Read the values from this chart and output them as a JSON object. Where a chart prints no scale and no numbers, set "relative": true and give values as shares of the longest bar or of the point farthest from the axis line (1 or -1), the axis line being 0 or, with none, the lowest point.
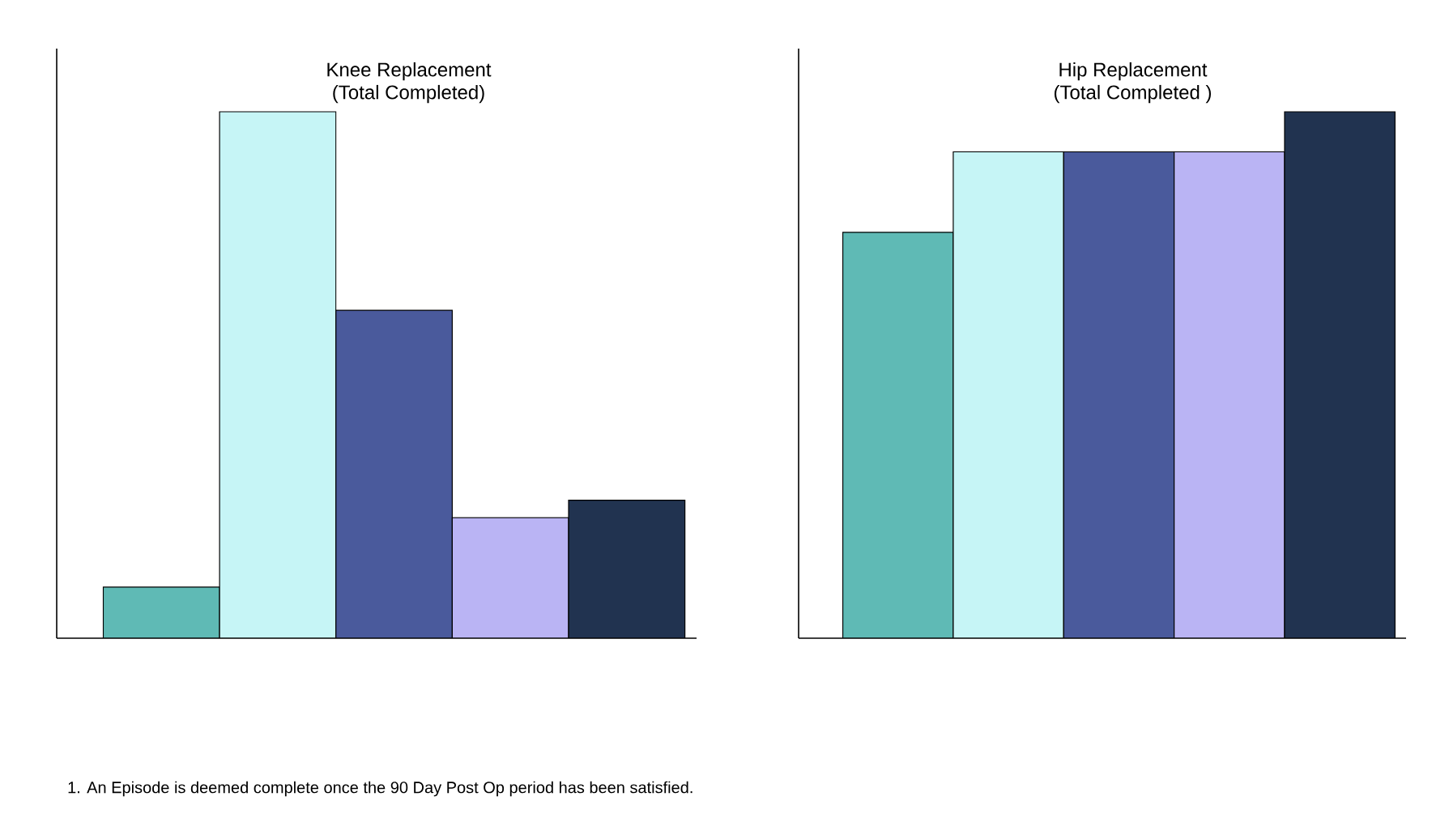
{
  "chart_data": [
    {
      "type": "bar",
      "title": "Knee Replacement",
      "subtitle": "(Total Completed)",
      "relative": true,
      "categories": [
        null,
        null,
        null,
        null,
        null
      ],
      "values": [
        0.097,
        1,
        0.623,
        0.229,
        0.262
      ],
      "colors": [
        "#5fbab5",
        "#c6f5f6",
        "#4a5a9c",
        "#bab4f4",
        "#213350"
      ],
      "annotations": [
        "1.    An Episode is deemed complete once the 90 Day Post Op period has been satisfied."
      ]
    },
    {
      "type": "bar",
      "title": "Hip Replacement",
      "subtitle": "(Total Completed )",
      "relative": true,
      "categories": [
        null,
        null,
        null,
        null,
        null
      ],
      "values": [
        0.771,
        0.924,
        0.924,
        0.924,
        1
      ],
      "colors": [
        "#5fbab5",
        "#c6f5f6",
        "#4a5a9c",
        "#bab4f4",
        "#213350"
      ]
    }
  ]
}
